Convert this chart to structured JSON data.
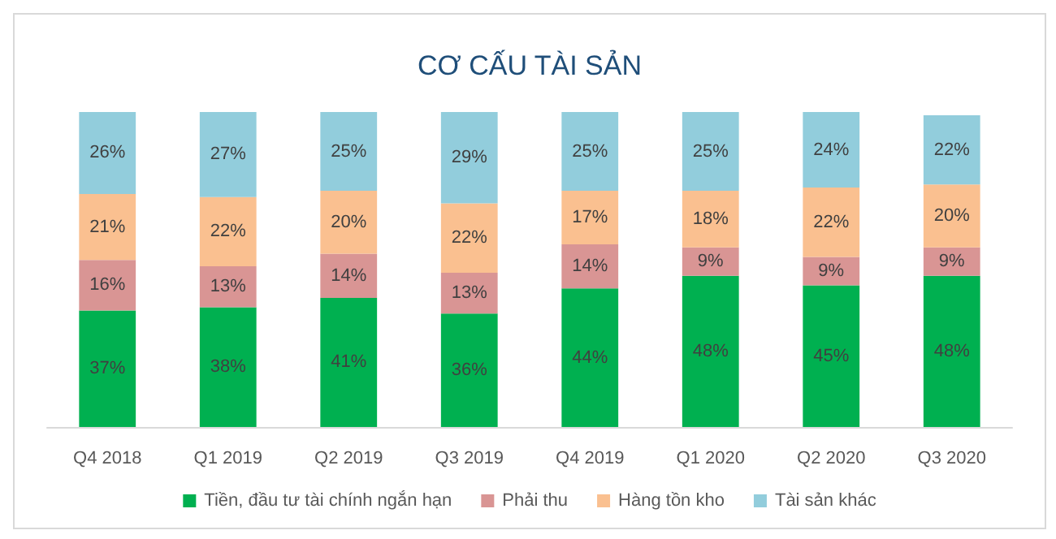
{
  "chart_data": {
    "type": "bar",
    "title": "CƠ CẤU TÀI SẢN",
    "stacked": true,
    "legend": "bottom",
    "grid": false,
    "categories": [
      "Q4 2018",
      "Q1 2019",
      "Q2 2019",
      "Q3 2019",
      "Q4 2019",
      "Q1 2020",
      "Q2 2020",
      "Q3 2020"
    ],
    "series": [
      {
        "name": "Tiền, đầu tư tài chính ngắn hạn",
        "color": "#00b050",
        "values": [
          37,
          38,
          41,
          36,
          44,
          48,
          45,
          48
        ],
        "value_labels": [
          "37%",
          "38%",
          "41%",
          "36%",
          "44%",
          "48%",
          "45%",
          "48%"
        ]
      },
      {
        "name": "Phải thu",
        "color": "#d99594",
        "values": [
          16,
          13,
          14,
          13,
          14,
          9,
          9,
          9
        ],
        "value_labels": [
          "16%",
          "13%",
          "14%",
          "13%",
          "14%",
          "9%",
          "9%",
          "9%"
        ]
      },
      {
        "name": "Hàng tồn kho",
        "color": "#fac090",
        "values": [
          21,
          22,
          20,
          22,
          17,
          18,
          22,
          20
        ],
        "value_labels": [
          "21%",
          "22%",
          "20%",
          "22%",
          "17%",
          "18%",
          "22%",
          "20%"
        ]
      },
      {
        "name": "Tài sản khác",
        "color": "#92cddc",
        "values": [
          26,
          27,
          25,
          29,
          25,
          25,
          24,
          22
        ],
        "value_labels": [
          "26%",
          "27%",
          "25%",
          "29%",
          "25%",
          "25%",
          "24%",
          "22%"
        ]
      }
    ]
  }
}
